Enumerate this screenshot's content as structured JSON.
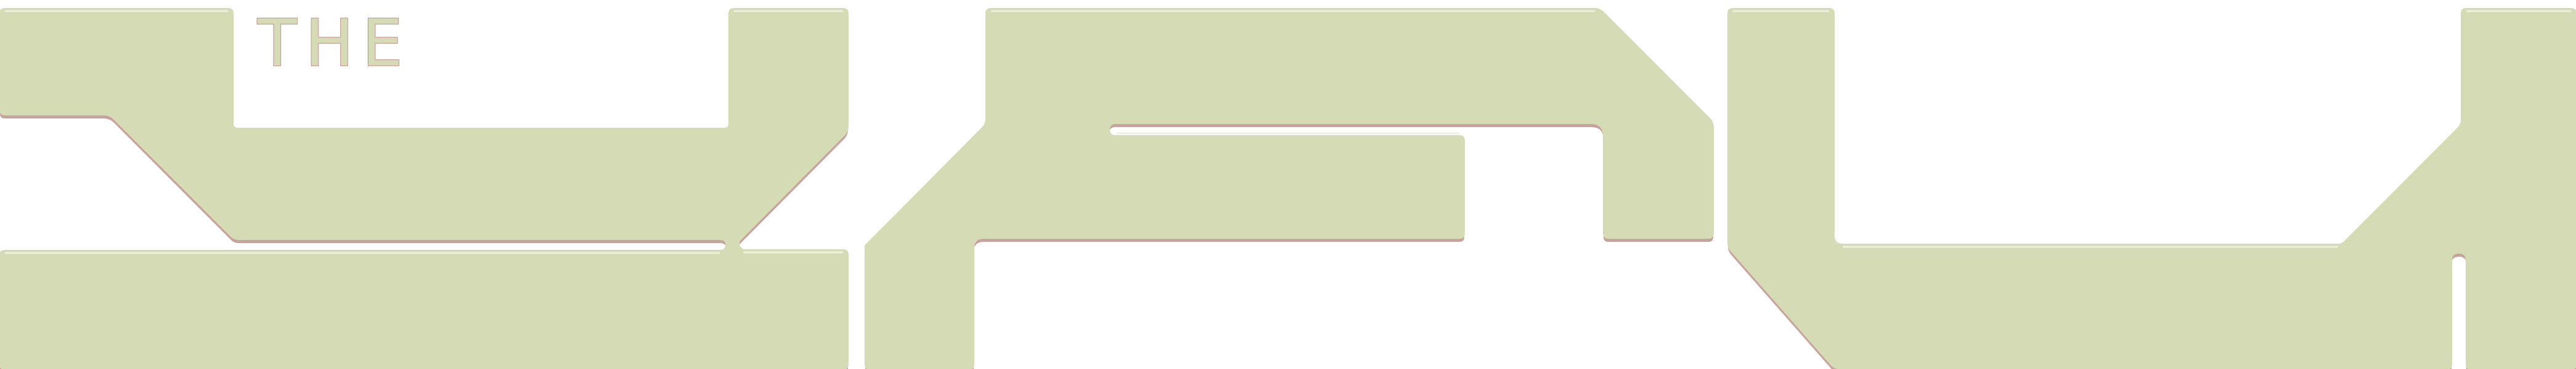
{
  "logo": {
    "tagline": "THE",
    "wordmark_shapes": 3
  },
  "colors": {
    "fill": "#d5dbb5",
    "shadow": "#c9a19d",
    "highlight": "#eef1dc",
    "background": "#ffffff"
  }
}
